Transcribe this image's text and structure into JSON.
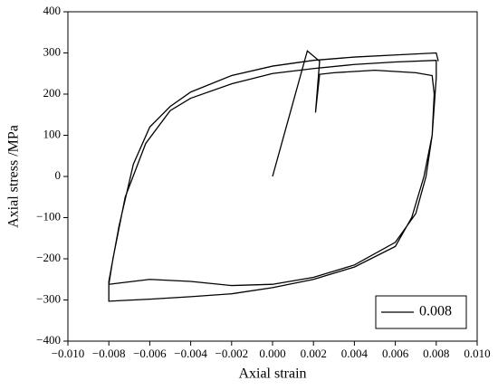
{
  "chart_data": {
    "type": "line",
    "x_label": "Axial strain",
    "y_label": "Axial stress /MPa",
    "xlim": [
      -0.01,
      0.01
    ],
    "ylim": [
      -400,
      400
    ],
    "xticks": [
      {
        "value": -0.01,
        "label": "−0.010"
      },
      {
        "value": -0.008,
        "label": "−0.008"
      },
      {
        "value": -0.006,
        "label": "−0.006"
      },
      {
        "value": -0.004,
        "label": "−0.004"
      },
      {
        "value": -0.002,
        "label": "−0.002"
      },
      {
        "value": 0,
        "label": "0.000"
      },
      {
        "value": 0.002,
        "label": "0.002"
      },
      {
        "value": 0.004,
        "label": "0.004"
      },
      {
        "value": 0.006,
        "label": "0.006"
      },
      {
        "value": 0.008,
        "label": "0.008"
      },
      {
        "value": 0.01,
        "label": "0.010"
      }
    ],
    "yticks": [
      {
        "value": -400,
        "label": "−400"
      },
      {
        "value": -300,
        "label": "−300"
      },
      {
        "value": -200,
        "label": "−200"
      },
      {
        "value": -100,
        "label": "−100"
      },
      0,
      100,
      200,
      300,
      400
    ],
    "legend": "lower right",
    "x": [
      0,
      0.0017,
      0.0023,
      0.0021,
      0.0023,
      0.003,
      0.004,
      0.005,
      0.006,
      0.007,
      0.0078,
      0.0079,
      0.0078,
      0.0075,
      0.007,
      0.006,
      0.004,
      0.002,
      0,
      -0.002,
      -0.004,
      -0.006,
      -0.008,
      -0.0078,
      -0.0072,
      -0.0062,
      -0.005,
      -0.004,
      -0.002,
      0,
      0.002,
      0.004,
      0.006,
      0.008,
      0.008,
      0.0078,
      0.0074,
      0.0068,
      0.006,
      0.004,
      0.002,
      0,
      -0.002,
      -0.004,
      -0.006,
      -0.008,
      -0.008,
      -0.0075,
      -0.0068,
      -0.006,
      -0.005,
      -0.004,
      -0.002,
      0,
      0.002,
      0.004,
      0.006,
      0.008,
      0.0081
    ],
    "series": [
      {
        "name": "0.008",
        "color": "#000000",
        "values": [
          0,
          305,
          280,
          155,
          248,
          252,
          255,
          258,
          255,
          252,
          245,
          200,
          100,
          0,
          -90,
          -160,
          -215,
          -245,
          -262,
          -265,
          -255,
          -250,
          -262,
          -200,
          -50,
          80,
          160,
          190,
          225,
          250,
          262,
          272,
          278,
          282,
          240,
          100,
          0,
          -100,
          -170,
          -220,
          -250,
          -270,
          -285,
          -292,
          -298,
          -303,
          -255,
          -120,
          30,
          120,
          170,
          205,
          245,
          268,
          282,
          290,
          295,
          300,
          280
        ]
      }
    ]
  }
}
